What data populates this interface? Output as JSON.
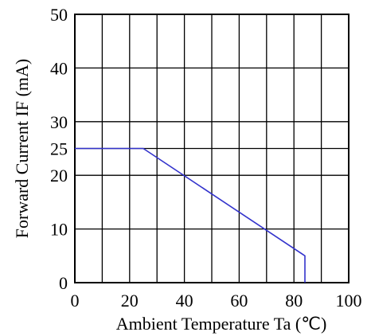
{
  "chart_data": {
    "type": "line",
    "title": "",
    "xlabel": "Ambient Temperature Ta (℃)",
    "ylabel": "Forward Current IF (mA)",
    "xlim": [
      0,
      100
    ],
    "ylim": [
      0,
      50
    ],
    "x_ticks": [
      0,
      20,
      40,
      60,
      80,
      100
    ],
    "x_tick_labels": [
      "0",
      "20",
      "40",
      "60",
      "80",
      "100"
    ],
    "x_grid_step": 10,
    "y_ticks": [
      0,
      10,
      20,
      25,
      30,
      40,
      50
    ],
    "y_tick_labels": [
      "0",
      "10",
      "20",
      "25",
      "30",
      "40",
      "50"
    ],
    "grid": true,
    "series": [
      {
        "color": "#3333cc",
        "points": [
          [
            0,
            25
          ],
          [
            25,
            25
          ],
          [
            84,
            5
          ],
          [
            84,
            0
          ]
        ]
      }
    ]
  }
}
